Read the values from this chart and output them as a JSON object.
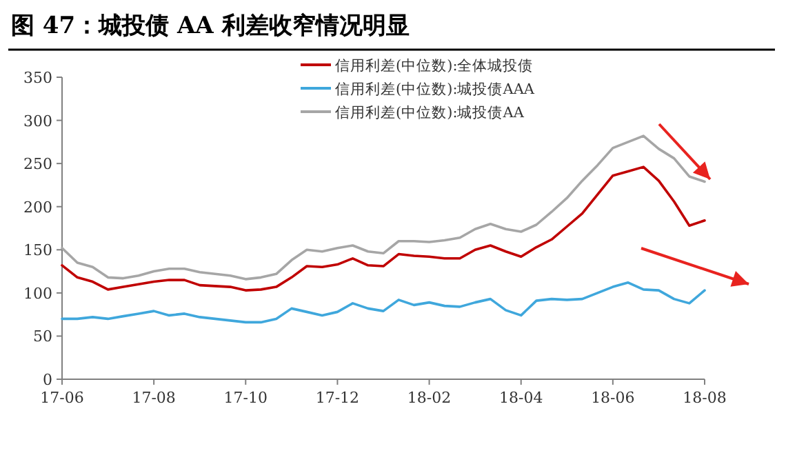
{
  "chart_data": {
    "type": "line",
    "title": "图 47：城投债 AA 利差收窄情况明显",
    "legend": "top right",
    "categories": [
      "17-06",
      null,
      null,
      null,
      null,
      null,
      "17-08",
      null,
      null,
      null,
      null,
      null,
      "17-10",
      null,
      null,
      null,
      null,
      null,
      "17-12",
      null,
      null,
      null,
      null,
      null,
      "18-02",
      null,
      null,
      null,
      null,
      null,
      "18-04",
      null,
      null,
      null,
      null,
      null,
      "18-06",
      null,
      null,
      null,
      null,
      null,
      "18-08"
    ],
    "ylim": [
      0,
      350
    ],
    "yticks": [
      0,
      50,
      100,
      150,
      200,
      250,
      300,
      350
    ],
    "series": [
      {
        "name": "信用利差(中位数):全体城投债",
        "color": "#c00000",
        "values": [
          132,
          118,
          113,
          104,
          107,
          110,
          113,
          115,
          115,
          109,
          108,
          107,
          103,
          104,
          107,
          118,
          131,
          130,
          133,
          140,
          132,
          131,
          145,
          143,
          142,
          140,
          140,
          150,
          155,
          148,
          142,
          153,
          162,
          177,
          192,
          214,
          236,
          241,
          246,
          230,
          206,
          178,
          184
        ]
      },
      {
        "name": "信用利差(中位数):城投债AAA",
        "color": "#3fa7dc",
        "values": [
          70,
          70,
          72,
          70,
          73,
          76,
          79,
          74,
          76,
          72,
          70,
          68,
          66,
          66,
          70,
          82,
          78,
          74,
          78,
          88,
          82,
          79,
          92,
          86,
          89,
          85,
          84,
          89,
          93,
          80,
          74,
          91,
          93,
          92,
          93,
          100,
          107,
          112,
          104,
          103,
          93,
          88,
          103
        ]
      },
      {
        "name": "信用利差(中位数):城投债AA",
        "color": "#a6a6a6",
        "values": [
          152,
          135,
          130,
          118,
          117,
          120,
          125,
          128,
          128,
          124,
          122,
          120,
          116,
          118,
          122,
          138,
          150,
          148,
          152,
          155,
          148,
          146,
          160,
          160,
          159,
          161,
          164,
          174,
          180,
          174,
          171,
          179,
          194,
          210,
          230,
          248,
          268,
          275,
          282,
          267,
          256,
          235,
          229
        ]
      }
    ]
  }
}
